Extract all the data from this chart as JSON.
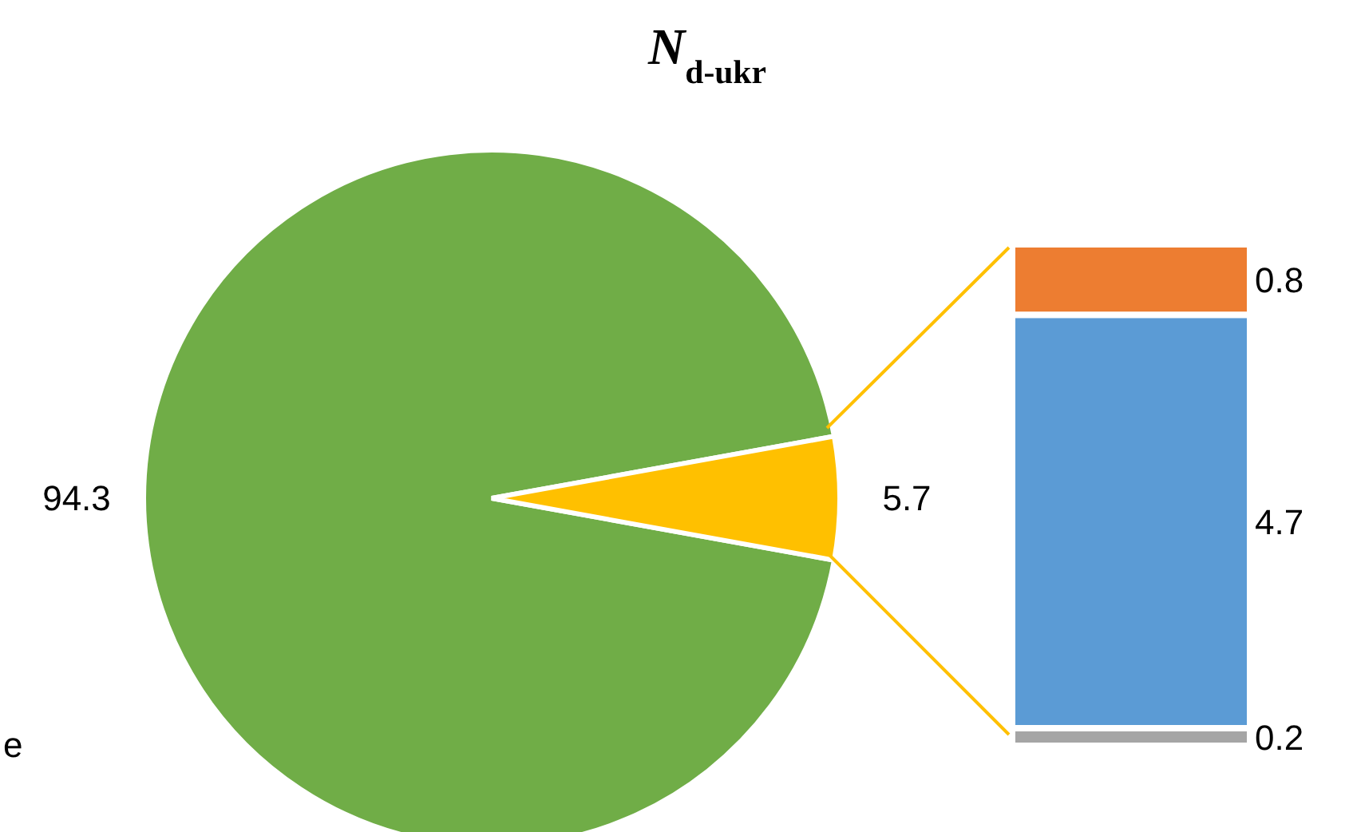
{
  "chart_data": [
    {
      "type": "pie",
      "title": "N$_{d-ukr}$",
      "categories": [
        null,
        null
      ],
      "values": [
        94.3,
        5.7
      ],
      "colors": [
        "#70ad47",
        "#ffc000"
      ],
      "data_labels": true,
      "annotations": [
        "e"
      ]
    },
    {
      "type": "bar",
      "stacked": true,
      "categories": [
        null
      ],
      "data_labels": true,
      "series": [
        {
          "color": "#a5a5a5",
          "values": [
            0.2
          ]
        },
        {
          "color": "#5b9bd5",
          "values": [
            4.7
          ]
        },
        {
          "color": "#ed7d31",
          "values": [
            0.8
          ]
        }
      ]
    }
  ]
}
